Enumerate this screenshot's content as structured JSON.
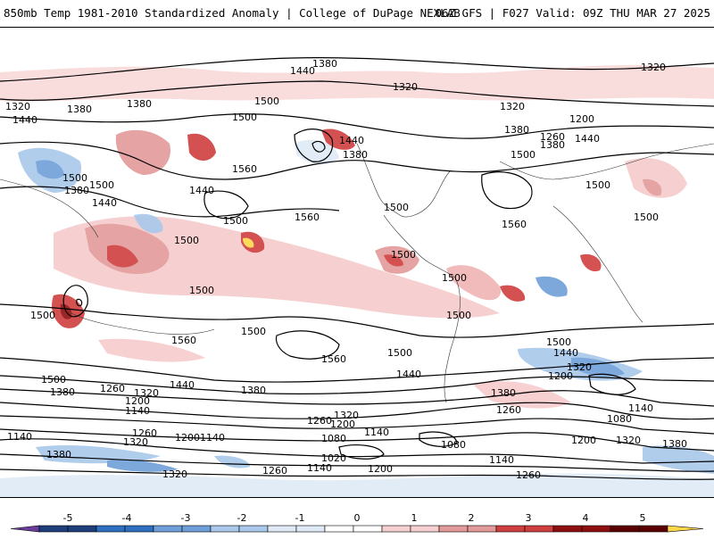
{
  "header": {
    "title": "850mb Temp 1981-2010 Standardized Anomaly | College of DuPage NEXLAB",
    "valid": "06Z GFS | F027 Valid: 09Z THU MAR 27 2025"
  },
  "contour_labels": {
    "c1020": "1020",
    "c1080": "1080",
    "c1140": "1140",
    "c1200": "1200",
    "c1260": "1260",
    "c1320": "1320",
    "c1380": "1380",
    "c1440": "1440",
    "c1500": "1500",
    "c1560": "1560"
  },
  "colorbar": {
    "ticks": [
      "-5",
      "-4",
      "-3",
      "-2",
      "-1",
      "0",
      "1",
      "2",
      "3",
      "4",
      "5"
    ],
    "colors": [
      "#6a3d9a",
      "#1f3f7a",
      "#2f6fbf",
      "#6f9fd8",
      "#a9c8ea",
      "#dfeaf6",
      "#ffffff",
      "#f6d0d0",
      "#e39a9a",
      "#cf3f3f",
      "#8e0f0f",
      "#5a0000",
      "#ffd84a"
    ]
  }
}
